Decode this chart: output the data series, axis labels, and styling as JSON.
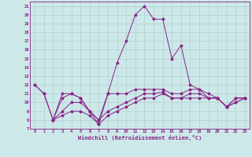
{
  "xlabel": "Windchill (Refroidissement éolien,°C)",
  "background_color": "#cce8e8",
  "grid_color": "#b0c8c8",
  "line_color": "#882288",
  "x": [
    0,
    1,
    2,
    3,
    4,
    5,
    6,
    7,
    8,
    9,
    10,
    11,
    12,
    13,
    14,
    15,
    16,
    17,
    18,
    19,
    20,
    21,
    22,
    23
  ],
  "line1": [
    12,
    11,
    8,
    10.5,
    11,
    10.5,
    9,
    7.5,
    11,
    14.5,
    17,
    20,
    21,
    19.5,
    19.5,
    15,
    16.5,
    12,
    11.5,
    10.5,
    10.5,
    9.5,
    10.5,
    10.5
  ],
  "line2": [
    12,
    11,
    8,
    11,
    11,
    10.5,
    9,
    8,
    11,
    11,
    11,
    11.5,
    11.5,
    11.5,
    11.5,
    11,
    11,
    11.5,
    11.5,
    11,
    10.5,
    9.5,
    10.5,
    10.5
  ],
  "line3": [
    null,
    null,
    8,
    9,
    10,
    10,
    9,
    8,
    9,
    9.5,
    10,
    10.5,
    11,
    11,
    11.2,
    10.5,
    10.5,
    11,
    11,
    10.5,
    10.5,
    9.5,
    10,
    10.5
  ],
  "line4": [
    null,
    null,
    8,
    8.5,
    9,
    9,
    8.5,
    7.5,
    8.5,
    9,
    9.5,
    10,
    10.5,
    10.5,
    11,
    10.5,
    10.5,
    10.5,
    10.5,
    10.5,
    10.5,
    9.5,
    10,
    10.5
  ],
  "ylim": [
    7,
    21.5
  ],
  "yticks": [
    7,
    8,
    9,
    10,
    11,
    12,
    13,
    14,
    15,
    16,
    17,
    18,
    19,
    20,
    21
  ],
  "xticks": [
    0,
    1,
    2,
    3,
    4,
    5,
    6,
    7,
    8,
    9,
    10,
    11,
    12,
    13,
    14,
    15,
    16,
    17,
    18,
    19,
    20,
    21,
    22,
    23
  ]
}
